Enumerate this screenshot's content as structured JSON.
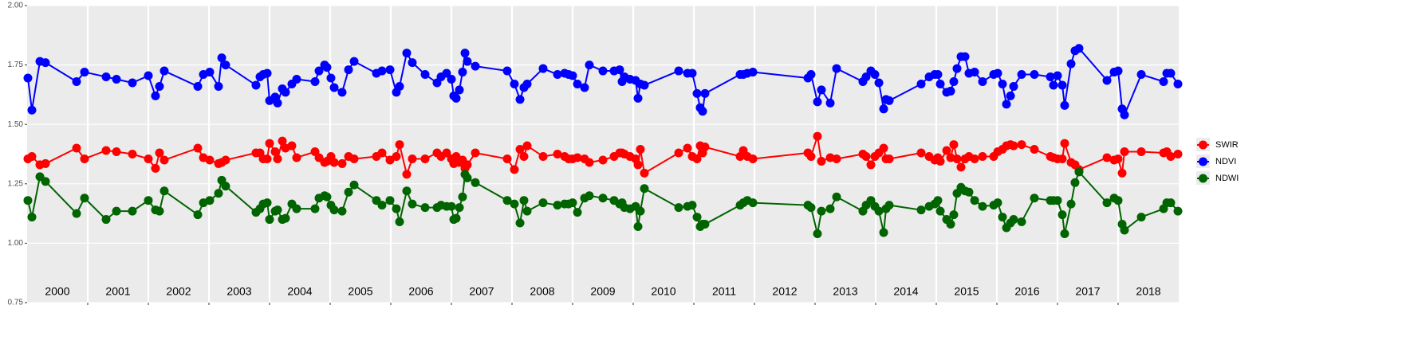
{
  "chart_data": {
    "type": "line",
    "x": [
      2000.013,
      2000.079,
      2000.211,
      2000.303,
      2000.816,
      2000.947,
      2001.303,
      2001.474,
      2001.737,
      2002.0,
      2002.118,
      2002.184,
      2002.263,
      2002.816,
      2002.908,
      2003.013,
      2003.158,
      2003.211,
      2003.276,
      2003.776,
      2003.842,
      2003.895,
      2003.961,
      2004.0,
      2004.092,
      2004.132,
      2004.211,
      2004.263,
      2004.368,
      2004.447,
      2004.75,
      2004.816,
      2004.908,
      2004.947,
      2005.013,
      2005.066,
      2005.197,
      2005.303,
      2005.395,
      2005.763,
      2005.855,
      2005.987,
      2006.092,
      2006.145,
      2006.263,
      2006.355,
      2006.566,
      2006.763,
      2006.829,
      2006.921,
      2007.0,
      2007.039,
      2007.079,
      2007.132,
      2007.184,
      2007.224,
      2007.263,
      2007.395,
      2007.921,
      2008.039,
      2008.132,
      2008.197,
      2008.25,
      2008.513,
      2008.75,
      2008.868,
      2008.934,
      2009.0,
      2009.079,
      2009.197,
      2009.276,
      2009.5,
      2009.684,
      2009.776,
      2009.816,
      2009.855,
      2009.947,
      2010.039,
      2010.079,
      2010.118,
      2010.184,
      2010.75,
      2010.895,
      2010.974,
      2011.053,
      2011.105,
      2011.145,
      2011.184,
      2011.763,
      2011.816,
      2011.882,
      2011.974,
      2012.882,
      2012.934,
      2013.039,
      2013.105,
      2013.25,
      2013.355,
      2013.789,
      2013.842,
      2013.921,
      2013.987,
      2014.053,
      2014.132,
      2014.171,
      2014.224,
      2014.75,
      2014.882,
      2014.974,
      2015.026,
      2015.066,
      2015.171,
      2015.237,
      2015.289,
      2015.342,
      2015.408,
      2015.474,
      2015.539,
      2015.632,
      2015.763,
      2015.947,
      2016.013,
      2016.092,
      2016.158,
      2016.224,
      2016.276,
      2016.408,
      2016.618,
      2016.882,
      2016.934,
      2017.0,
      2017.079,
      2017.118,
      2017.224,
      2017.289,
      2017.355,
      2017.816,
      2017.934,
      2018.0,
      2018.066,
      2018.105,
      2018.382,
      2018.75,
      2018.803,
      2018.868,
      2018.987
    ],
    "series": [
      {
        "name": "SWIR",
        "color": "#ff0000",
        "values": [
          1.355,
          1.365,
          1.33,
          1.335,
          1.4,
          1.355,
          1.39,
          1.385,
          1.375,
          1.355,
          1.315,
          1.38,
          1.35,
          1.4,
          1.36,
          1.35,
          1.335,
          1.34,
          1.35,
          1.38,
          1.38,
          1.355,
          1.355,
          1.42,
          1.385,
          1.355,
          1.43,
          1.4,
          1.41,
          1.36,
          1.385,
          1.36,
          1.34,
          1.345,
          1.365,
          1.34,
          1.335,
          1.365,
          1.355,
          1.365,
          1.38,
          1.35,
          1.365,
          1.415,
          1.29,
          1.355,
          1.355,
          1.38,
          1.365,
          1.38,
          1.355,
          1.335,
          1.365,
          1.34,
          1.35,
          1.315,
          1.33,
          1.38,
          1.355,
          1.31,
          1.395,
          1.365,
          1.41,
          1.365,
          1.375,
          1.365,
          1.355,
          1.355,
          1.36,
          1.355,
          1.34,
          1.35,
          1.365,
          1.38,
          1.38,
          1.375,
          1.365,
          1.355,
          1.33,
          1.395,
          1.295,
          1.38,
          1.4,
          1.365,
          1.355,
          1.41,
          1.38,
          1.405,
          1.365,
          1.39,
          1.365,
          1.355,
          1.38,
          1.365,
          1.45,
          1.345,
          1.36,
          1.355,
          1.375,
          1.365,
          1.33,
          1.365,
          1.38,
          1.4,
          1.355,
          1.355,
          1.38,
          1.365,
          1.35,
          1.36,
          1.345,
          1.39,
          1.36,
          1.415,
          1.355,
          1.32,
          1.355,
          1.365,
          1.355,
          1.365,
          1.365,
          1.385,
          1.395,
          1.41,
          1.415,
          1.41,
          1.415,
          1.395,
          1.365,
          1.36,
          1.355,
          1.355,
          1.42,
          1.34,
          1.33,
          1.31,
          1.36,
          1.35,
          1.355,
          1.295,
          1.385,
          1.385,
          1.38,
          1.385,
          1.365,
          1.375
        ]
      },
      {
        "name": "NDVI",
        "color": "#0000ff",
        "values": [
          1.695,
          1.56,
          1.765,
          1.76,
          1.68,
          1.72,
          1.7,
          1.69,
          1.675,
          1.705,
          1.62,
          1.66,
          1.725,
          1.66,
          1.71,
          1.72,
          1.66,
          1.78,
          1.75,
          1.665,
          1.7,
          1.71,
          1.715,
          1.6,
          1.615,
          1.59,
          1.65,
          1.635,
          1.67,
          1.69,
          1.68,
          1.725,
          1.75,
          1.74,
          1.695,
          1.655,
          1.635,
          1.73,
          1.765,
          1.715,
          1.725,
          1.73,
          1.635,
          1.66,
          1.8,
          1.76,
          1.71,
          1.675,
          1.7,
          1.715,
          1.69,
          1.62,
          1.61,
          1.645,
          1.72,
          1.8,
          1.765,
          1.745,
          1.725,
          1.67,
          1.605,
          1.655,
          1.67,
          1.735,
          1.71,
          1.715,
          1.71,
          1.705,
          1.67,
          1.655,
          1.75,
          1.725,
          1.725,
          1.73,
          1.68,
          1.7,
          1.69,
          1.685,
          1.61,
          1.67,
          1.665,
          1.725,
          1.715,
          1.715,
          1.63,
          1.57,
          1.555,
          1.63,
          1.71,
          1.71,
          1.715,
          1.72,
          1.695,
          1.71,
          1.595,
          1.645,
          1.59,
          1.735,
          1.68,
          1.7,
          1.725,
          1.71,
          1.675,
          1.565,
          1.605,
          1.6,
          1.67,
          1.7,
          1.71,
          1.71,
          1.67,
          1.635,
          1.64,
          1.68,
          1.735,
          1.785,
          1.785,
          1.715,
          1.72,
          1.68,
          1.71,
          1.715,
          1.67,
          1.585,
          1.62,
          1.66,
          1.71,
          1.71,
          1.7,
          1.665,
          1.705,
          1.665,
          1.58,
          1.755,
          1.81,
          1.82,
          1.685,
          1.72,
          1.725,
          1.565,
          1.54,
          1.71,
          1.68,
          1.715,
          1.715,
          1.67
        ]
      },
      {
        "name": "NDWI",
        "color": "#006400",
        "values": [
          1.18,
          1.11,
          1.28,
          1.26,
          1.125,
          1.19,
          1.1,
          1.135,
          1.135,
          1.18,
          1.14,
          1.135,
          1.22,
          1.12,
          1.17,
          1.18,
          1.21,
          1.265,
          1.24,
          1.13,
          1.145,
          1.165,
          1.17,
          1.1,
          1.135,
          1.14,
          1.1,
          1.105,
          1.165,
          1.145,
          1.145,
          1.19,
          1.2,
          1.195,
          1.16,
          1.14,
          1.135,
          1.215,
          1.245,
          1.18,
          1.16,
          1.18,
          1.145,
          1.09,
          1.22,
          1.165,
          1.15,
          1.15,
          1.16,
          1.155,
          1.155,
          1.1,
          1.105,
          1.15,
          1.195,
          1.29,
          1.275,
          1.255,
          1.18,
          1.165,
          1.085,
          1.18,
          1.135,
          1.17,
          1.16,
          1.165,
          1.165,
          1.17,
          1.13,
          1.19,
          1.2,
          1.19,
          1.18,
          1.165,
          1.17,
          1.15,
          1.145,
          1.155,
          1.07,
          1.135,
          1.23,
          1.15,
          1.155,
          1.16,
          1.11,
          1.07,
          1.08,
          1.08,
          1.16,
          1.17,
          1.18,
          1.17,
          1.16,
          1.15,
          1.04,
          1.135,
          1.145,
          1.195,
          1.135,
          1.16,
          1.18,
          1.155,
          1.135,
          1.045,
          1.145,
          1.16,
          1.14,
          1.155,
          1.165,
          1.18,
          1.135,
          1.1,
          1.08,
          1.12,
          1.21,
          1.235,
          1.22,
          1.215,
          1.18,
          1.155,
          1.16,
          1.17,
          1.11,
          1.065,
          1.085,
          1.1,
          1.09,
          1.19,
          1.18,
          1.18,
          1.18,
          1.12,
          1.04,
          1.165,
          1.255,
          1.3,
          1.17,
          1.19,
          1.18,
          1.08,
          1.055,
          1.11,
          1.145,
          1.17,
          1.17,
          1.135
        ]
      }
    ],
    "xlim": [
      2000,
      2019
    ],
    "xticks": [
      2001,
      2002,
      2003,
      2004,
      2005,
      2006,
      2007,
      2008,
      2009,
      2010,
      2011,
      2012,
      2013,
      2014,
      2015,
      2016,
      2017,
      2018
    ],
    "ylim": [
      0.75,
      2.0
    ],
    "yticks": [
      0.75,
      {
        "value": 1,
        "label": "1.00"
      },
      1.25,
      {
        "value": 1.5,
        "label": "1.50"
      },
      1.75,
      {
        "value": 2,
        "label": "2.00"
      }
    ],
    "grid": true,
    "legend": "right",
    "annotations": [
      {
        "text": "2000",
        "x": 2000.5
      },
      {
        "text": "2001",
        "x": 2001.5
      },
      {
        "text": "2002",
        "x": 2002.5
      },
      {
        "text": "2003",
        "x": 2003.5
      },
      {
        "text": "2004",
        "x": 2004.5
      },
      {
        "text": "2005",
        "x": 2005.5
      },
      {
        "text": "2006",
        "x": 2006.5
      },
      {
        "text": "2007",
        "x": 2007.5
      },
      {
        "text": "2008",
        "x": 2008.5
      },
      {
        "text": "2009",
        "x": 2009.5
      },
      {
        "text": "2010",
        "x": 2010.5
      },
      {
        "text": "2011",
        "x": 2011.5
      },
      {
        "text": "2012",
        "x": 2012.5
      },
      {
        "text": "2013",
        "x": 2013.5
      },
      {
        "text": "2014",
        "x": 2014.5
      },
      {
        "text": "2015",
        "x": 2015.5
      },
      {
        "text": "2016",
        "x": 2016.5
      },
      {
        "text": "2017",
        "x": 2017.5
      },
      {
        "text": "2018",
        "x": 2018.5
      }
    ]
  }
}
